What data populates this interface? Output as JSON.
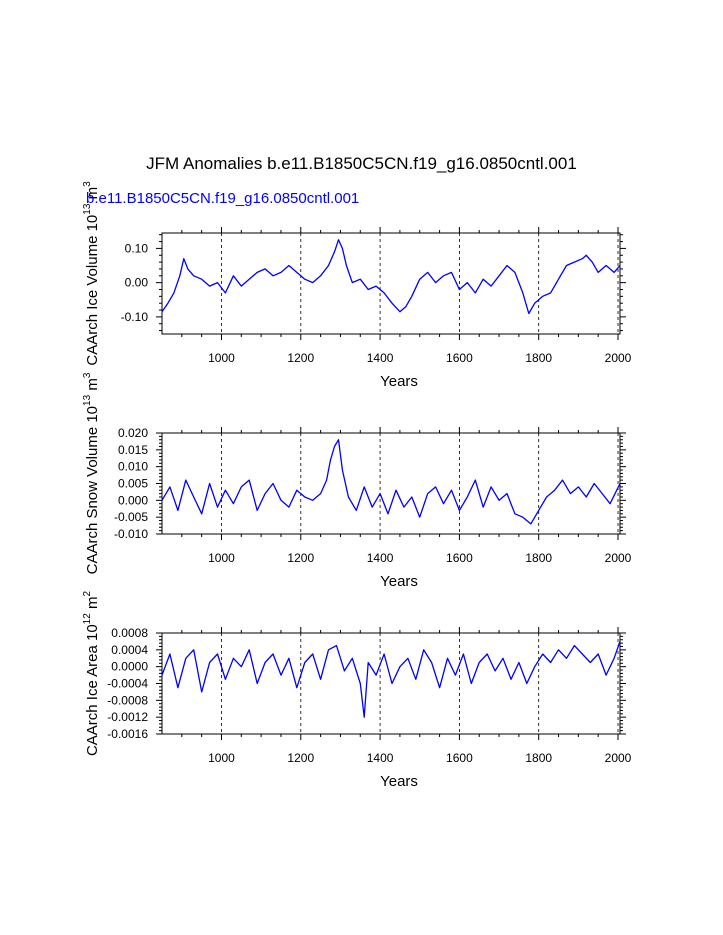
{
  "figure": {
    "title": "JFM Anomalies b.e11.B1850C5CN.f19_g16.0850cntl.001",
    "subtitle": "b.e11.B1850C5CN.f19_g16.0850cntl.001",
    "line_color": "#0000ff"
  },
  "chart_data": [
    {
      "type": "line",
      "name": "ice-volume",
      "ylabel": "CAArch Ice Volume 10",
      "ylabel_exp": "13",
      "ylabel_unit": " m",
      "ylabel_unit_exp": "3",
      "xlabel": "Years",
      "xlim": [
        850,
        2005
      ],
      "ylim": [
        -0.15,
        0.145
      ],
      "xticks": [
        1000,
        1200,
        1400,
        1600,
        1800,
        2000
      ],
      "yticks": [
        -0.1,
        0.0,
        0.1
      ],
      "ytick_labels": [
        "-0.10",
        "0.00",
        "0.10"
      ],
      "grid_x": true,
      "series": [
        {
          "name": "ice-volume-anomaly",
          "x": [
            850,
            865,
            880,
            895,
            905,
            915,
            930,
            950,
            970,
            990,
            1010,
            1030,
            1050,
            1070,
            1090,
            1110,
            1130,
            1150,
            1170,
            1190,
            1210,
            1230,
            1250,
            1270,
            1285,
            1295,
            1305,
            1315,
            1330,
            1350,
            1370,
            1390,
            1410,
            1430,
            1450,
            1465,
            1480,
            1500,
            1520,
            1540,
            1560,
            1580,
            1600,
            1620,
            1640,
            1660,
            1680,
            1700,
            1720,
            1740,
            1760,
            1775,
            1790,
            1810,
            1830,
            1850,
            1870,
            1890,
            1910,
            1920,
            1935,
            1950,
            1970,
            1990,
            2005
          ],
          "values": [
            -0.085,
            -0.06,
            -0.03,
            0.02,
            0.07,
            0.04,
            0.02,
            0.01,
            -0.01,
            0.0,
            -0.03,
            0.02,
            -0.01,
            0.01,
            0.03,
            0.04,
            0.02,
            0.03,
            0.05,
            0.03,
            0.01,
            0.0,
            0.02,
            0.05,
            0.09,
            0.125,
            0.1,
            0.05,
            0.0,
            0.01,
            -0.02,
            -0.01,
            -0.03,
            -0.06,
            -0.085,
            -0.07,
            -0.04,
            0.01,
            0.03,
            0.0,
            0.02,
            0.03,
            -0.02,
            0.0,
            -0.03,
            0.01,
            -0.01,
            0.02,
            0.05,
            0.03,
            -0.03,
            -0.09,
            -0.06,
            -0.04,
            -0.03,
            0.01,
            0.05,
            0.06,
            0.07,
            0.08,
            0.06,
            0.03,
            0.05,
            0.03,
            0.05
          ]
        }
      ]
    },
    {
      "type": "line",
      "name": "snow-volume",
      "ylabel": "CAArch Snow Volume 10",
      "ylabel_exp": "13",
      "ylabel_unit": " m",
      "ylabel_unit_exp": "3",
      "xlabel": "Years",
      "xlim": [
        850,
        2005
      ],
      "ylim": [
        -0.01,
        0.02
      ],
      "xticks": [
        1000,
        1200,
        1400,
        1600,
        1800,
        2000
      ],
      "yticks": [
        -0.01,
        -0.005,
        0.0,
        0.005,
        0.01,
        0.015,
        0.02
      ],
      "ytick_labels": [
        "-0.010",
        "-0.005",
        "0.000",
        "0.005",
        "0.010",
        "0.015",
        "0.020"
      ],
      "grid_x": true,
      "series": [
        {
          "name": "snow-volume-anomaly",
          "x": [
            850,
            870,
            890,
            910,
            930,
            950,
            970,
            990,
            1010,
            1030,
            1050,
            1070,
            1090,
            1110,
            1130,
            1150,
            1170,
            1190,
            1210,
            1230,
            1250,
            1265,
            1275,
            1285,
            1295,
            1305,
            1320,
            1340,
            1360,
            1380,
            1400,
            1420,
            1440,
            1460,
            1480,
            1500,
            1520,
            1540,
            1560,
            1580,
            1600,
            1620,
            1640,
            1660,
            1680,
            1700,
            1720,
            1740,
            1760,
            1780,
            1800,
            1820,
            1840,
            1860,
            1880,
            1900,
            1920,
            1940,
            1960,
            1980,
            2005
          ],
          "values": [
            0.0,
            0.004,
            -0.003,
            0.006,
            0.001,
            -0.004,
            0.005,
            -0.002,
            0.003,
            -0.001,
            0.004,
            0.006,
            -0.003,
            0.002,
            0.005,
            0.0,
            -0.002,
            0.003,
            0.001,
            0.0,
            0.002,
            0.006,
            0.012,
            0.016,
            0.018,
            0.009,
            0.001,
            -0.003,
            0.004,
            -0.002,
            0.002,
            -0.004,
            0.003,
            -0.002,
            0.001,
            -0.005,
            0.002,
            0.004,
            -0.001,
            0.003,
            -0.003,
            0.001,
            0.006,
            -0.002,
            0.004,
            0.0,
            0.002,
            -0.004,
            -0.005,
            -0.007,
            -0.003,
            0.001,
            0.003,
            0.006,
            0.002,
            0.004,
            0.001,
            0.005,
            0.002,
            -0.001,
            0.005
          ]
        }
      ]
    },
    {
      "type": "line",
      "name": "ice-area",
      "ylabel": "CAArch Ice Area 10",
      "ylabel_exp": "12",
      "ylabel_unit": " m",
      "ylabel_unit_exp": "2",
      "xlabel": "Years",
      "xlim": [
        850,
        2005
      ],
      "ylim": [
        -0.0016,
        0.0008
      ],
      "xticks": [
        1000,
        1200,
        1400,
        1600,
        1800,
        2000
      ],
      "yticks": [
        -0.0016,
        -0.0012,
        -0.0008,
        -0.0004,
        0.0,
        0.0004,
        0.0008
      ],
      "ytick_labels": [
        "-0.0016",
        "-0.0012",
        "-0.0008",
        "-0.0004",
        "0.0000",
        "0.0004",
        "0.0008"
      ],
      "grid_x": true,
      "series": [
        {
          "name": "ice-area-anomaly",
          "x": [
            850,
            870,
            890,
            910,
            930,
            950,
            970,
            990,
            1010,
            1030,
            1050,
            1070,
            1090,
            1110,
            1130,
            1150,
            1170,
            1190,
            1210,
            1230,
            1250,
            1270,
            1290,
            1310,
            1330,
            1350,
            1360,
            1370,
            1390,
            1410,
            1430,
            1450,
            1470,
            1490,
            1510,
            1530,
            1550,
            1570,
            1590,
            1610,
            1630,
            1650,
            1670,
            1690,
            1710,
            1730,
            1750,
            1770,
            1790,
            1810,
            1830,
            1850,
            1870,
            1890,
            1910,
            1930,
            1950,
            1970,
            1990,
            2005
          ],
          "values": [
            -0.0002,
            0.0003,
            -0.0005,
            0.0002,
            0.0004,
            -0.0006,
            0.0001,
            0.0003,
            -0.0003,
            0.0002,
            0.0,
            0.0004,
            -0.0004,
            0.0001,
            0.0003,
            -0.0002,
            0.0002,
            -0.0005,
            0.0001,
            0.0003,
            -0.0003,
            0.0004,
            0.0005,
            -0.0001,
            0.0002,
            -0.0004,
            -0.0012,
            0.0001,
            -0.0002,
            0.0003,
            -0.0004,
            0.0,
            0.0002,
            -0.0003,
            0.0004,
            0.0001,
            -0.0005,
            0.0002,
            -0.0002,
            0.0003,
            -0.0004,
            0.0001,
            0.0003,
            -0.0001,
            0.0002,
            -0.0003,
            0.0001,
            -0.0004,
            0.0,
            0.0003,
            0.0001,
            0.0004,
            0.0002,
            0.0005,
            0.0003,
            0.0001,
            0.0003,
            -0.0002,
            0.0002,
            0.0006
          ]
        }
      ]
    }
  ]
}
